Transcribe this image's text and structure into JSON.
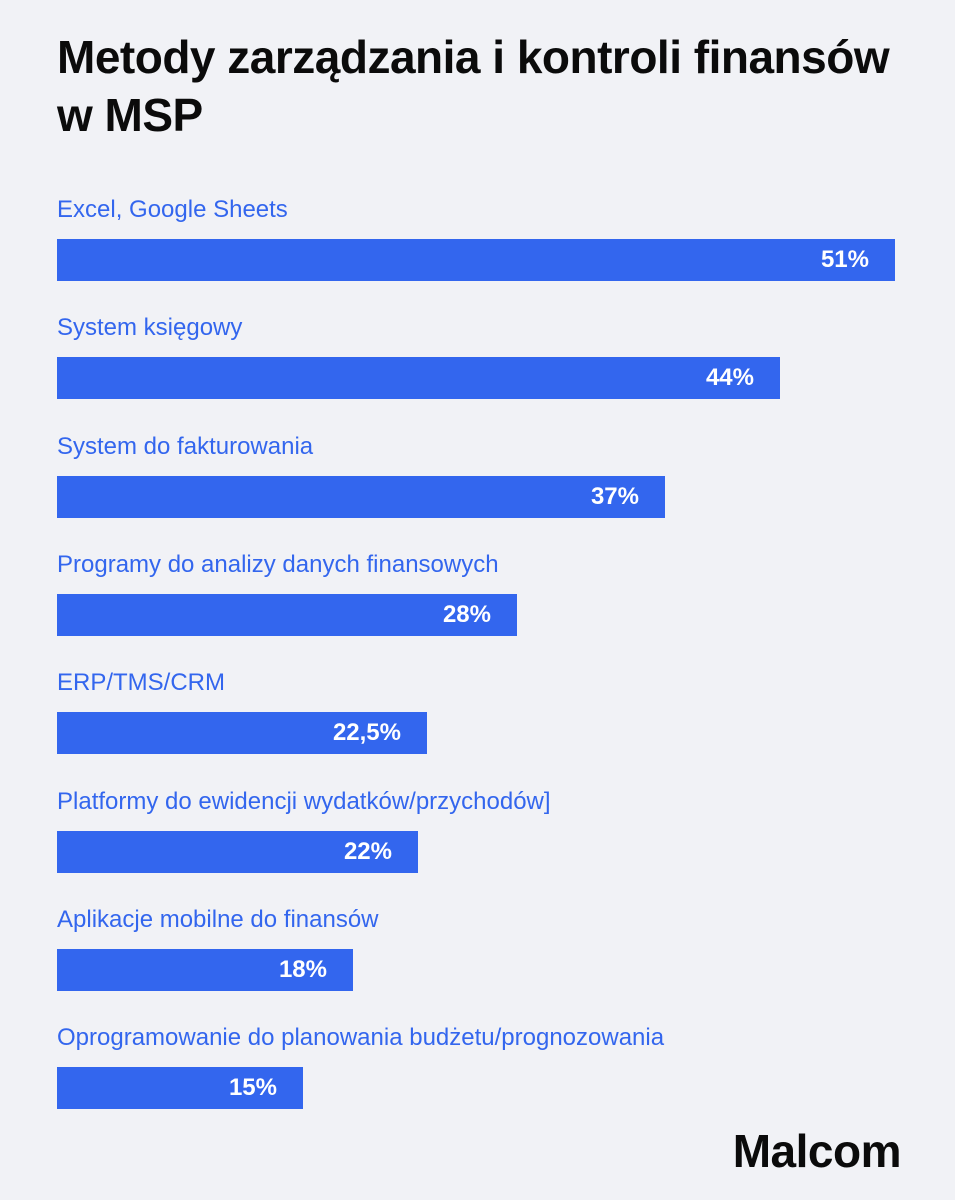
{
  "title": "Metody zarządzania i kontroli finansów w MSP",
  "brand": {
    "logo_text": "Malcom"
  },
  "colors": {
    "bar": "#3366ee",
    "label": "#3366ee",
    "background": "#f1f2f6",
    "title": "#0b0b0b"
  },
  "chart_data": {
    "type": "bar",
    "orientation": "horizontal",
    "title": "Metody zarządzania i kontroli finansów w MSP",
    "categories": [
      "Excel, Google Sheets",
      "System księgowy",
      "System do fakturowania",
      "Programy do analizy danych finansowych",
      "ERP/TMS/CRM",
      "Platformy do ewidencji wydatków/przychodów]",
      "Aplikacje mobilne do finansów",
      "Oprogramowanie do planowania budżetu/prognozowania"
    ],
    "values": [
      51,
      44,
      37,
      28,
      22.5,
      22,
      18,
      15
    ],
    "value_labels": [
      "51%",
      "44%",
      "37%",
      "28%",
      "22,5%",
      "22%",
      "18%",
      "15%"
    ],
    "unit": "%",
    "xlim": [
      0,
      51
    ],
    "grid": false,
    "legend": "none"
  }
}
